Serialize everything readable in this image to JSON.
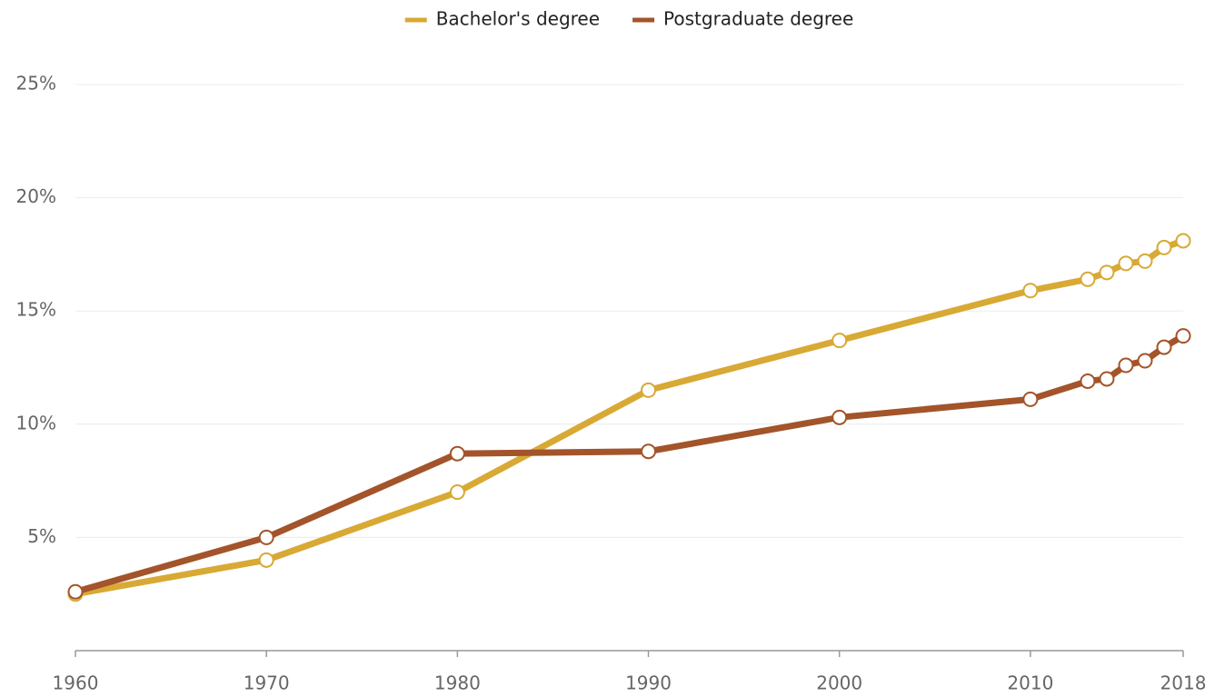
{
  "chart_data": {
    "type": "line",
    "x": [
      1960,
      1970,
      1980,
      1990,
      2000,
      2010,
      2013,
      2014,
      2015,
      2016,
      2017,
      2018
    ],
    "series": [
      {
        "name": "Bachelor's degree",
        "color": "#d8a934",
        "values": [
          2.5,
          4.0,
          7.0,
          11.5,
          13.7,
          15.9,
          16.4,
          16.7,
          17.1,
          17.2,
          17.8,
          18.1
        ]
      },
      {
        "name": "Postgraduate degree",
        "color": "#a3542a",
        "values": [
          2.6,
          5.0,
          8.7,
          8.8,
          10.3,
          11.1,
          11.9,
          12.0,
          12.6,
          12.8,
          13.4,
          13.9
        ]
      }
    ],
    "xlim": [
      1960,
      2018
    ],
    "xticks": [
      1960,
      1970,
      1980,
      1990,
      2000,
      2010,
      2018
    ],
    "ylim": [
      0,
      25
    ],
    "yticks": [
      {
        "value": 5,
        "label": "5%"
      },
      {
        "value": 10,
        "label": "10%"
      },
      {
        "value": 15,
        "label": "15%"
      },
      {
        "value": 20,
        "label": "20%"
      },
      {
        "value": 25,
        "label": "25%"
      }
    ],
    "grid": true,
    "legend": "top"
  }
}
